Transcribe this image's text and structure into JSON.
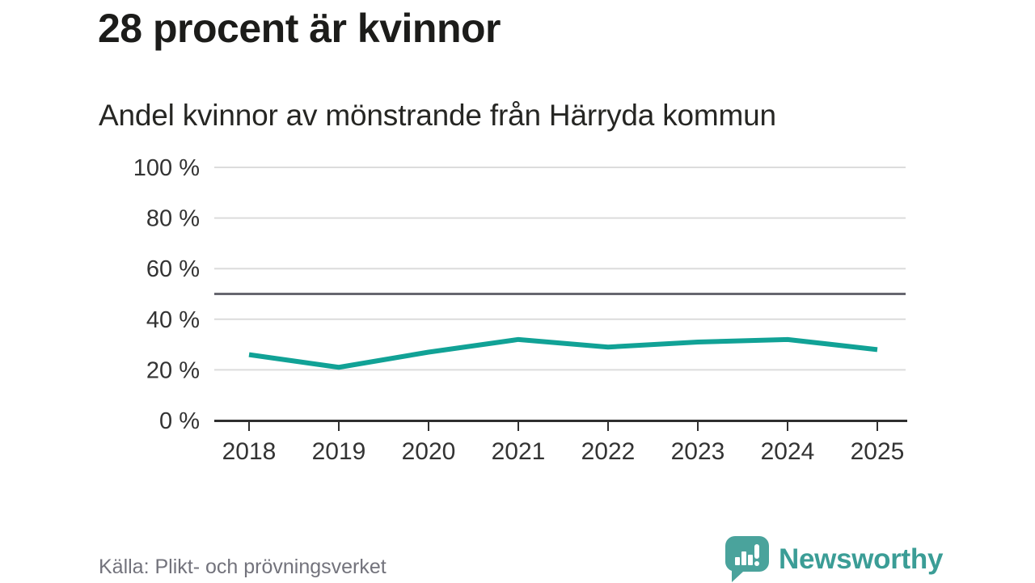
{
  "header": {
    "title": "28 procent är kvinnor",
    "subtitle": "Andel kvinnor av mönstrande från Härryda kommun"
  },
  "footer": {
    "source": "Källa: Plikt- och prövningsverket",
    "brand": "Newsworthy"
  },
  "colors": {
    "line": "#11a296",
    "grid": "#dcdcdc",
    "axis": "#2f2f2f",
    "tick_text": "#333333",
    "reference": "#67676f",
    "brand_bubble": "#4aa39c",
    "brand_text": "#3b9d96"
  },
  "chart_data": {
    "type": "line",
    "title": "28 procent är kvinnor",
    "subtitle": "Andel kvinnor av mönstrande från Härryda kommun",
    "categories": [
      "2018",
      "2019",
      "2020",
      "2021",
      "2022",
      "2023",
      "2024",
      "2025"
    ],
    "series": [
      {
        "name": "Andel kvinnor av mönstrande",
        "values": [
          26,
          21,
          27,
          32,
          29,
          31,
          32,
          28
        ]
      }
    ],
    "unit": "%",
    "ylim": [
      0,
      100
    ],
    "yticks": [
      0,
      20,
      40,
      60,
      80,
      100
    ],
    "ytick_suffix": " %",
    "reference_line": 50,
    "grid": true,
    "legend": "none",
    "source": "Källa: Plikt- och prövningsverket"
  }
}
